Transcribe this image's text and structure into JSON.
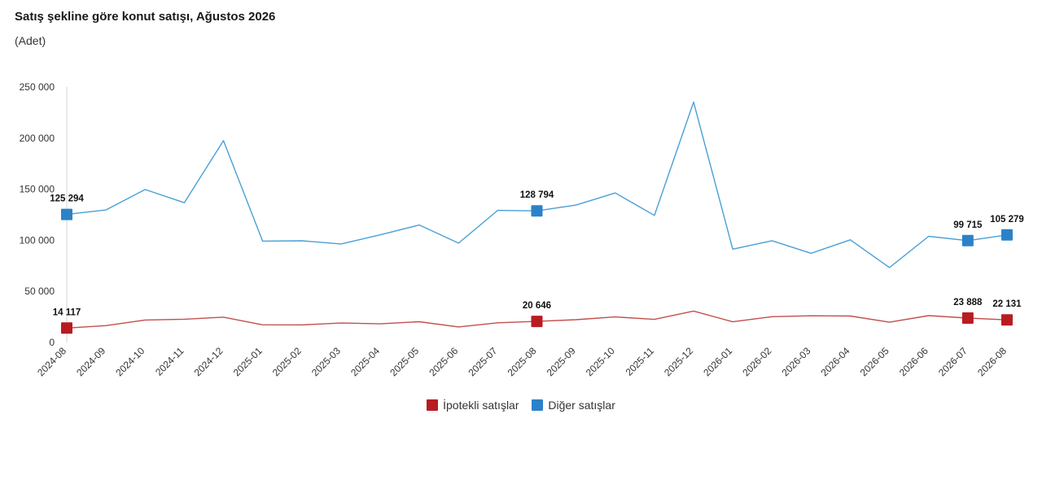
{
  "header": {
    "title": "Satış şekline göre konut satışı, Ağustos 2026",
    "subtitle": "(Adet)"
  },
  "colors": {
    "series_1": "#b81c22",
    "series_1_line": "#c0504d",
    "series_2": "#2b82c9",
    "series_2_line": "#4a9fd6"
  },
  "chart_data": {
    "type": "line",
    "title": "Satış şekline göre konut satışı, Ağustos 2026",
    "subtitle": "(Adet)",
    "categories": [
      "2024-08",
      "2024-09",
      "2024-10",
      "2024-11",
      "2024-12",
      "2025-01",
      "2025-02",
      "2025-03",
      "2025-04",
      "2025-05",
      "2025-06",
      "2025-07",
      "2025-08",
      "2025-09",
      "2025-10",
      "2025-11",
      "2025-12",
      "2026-01",
      "2026-02",
      "2026-03",
      "2026-04",
      "2026-05",
      "2026-06",
      "2026-07",
      "2026-08"
    ],
    "ylim": [
      0,
      250000
    ],
    "yticks": [
      0,
      50000,
      100000,
      150000,
      200000,
      250000
    ],
    "ytick_labels": [
      "0",
      "50 000",
      "100 000",
      "150 000",
      "200 000",
      "250 000"
    ],
    "grid": false,
    "legend_position": "bottom-center",
    "series": [
      {
        "name": "İpotekli satışlar",
        "values": [
          14117,
          16500,
          22000,
          22800,
          24800,
          17300,
          17200,
          19000,
          18200,
          20300,
          15200,
          19300,
          20646,
          22300,
          25000,
          22600,
          30700,
          20200,
          25200,
          26100,
          25900,
          19800,
          26300,
          23888,
          22131
        ],
        "labeled": [
          {
            "index": 0,
            "label": "14 117"
          },
          {
            "index": 12,
            "label": "20 646"
          },
          {
            "index": 23,
            "label": "23 888"
          },
          {
            "index": 24,
            "label": "22 131"
          }
        ]
      },
      {
        "name": "Diğer satışlar",
        "values": [
          125294,
          129700,
          149700,
          136800,
          197500,
          99200,
          99500,
          96400,
          105300,
          115000,
          97200,
          129300,
          128794,
          134500,
          146300,
          124400,
          235300,
          91300,
          99600,
          87300,
          100500,
          73300,
          103900,
          99715,
          105279
        ],
        "labeled": [
          {
            "index": 0,
            "label": "125 294"
          },
          {
            "index": 12,
            "label": "128 794"
          },
          {
            "index": 23,
            "label": "99 715"
          },
          {
            "index": 24,
            "label": "105 279"
          }
        ]
      }
    ]
  }
}
